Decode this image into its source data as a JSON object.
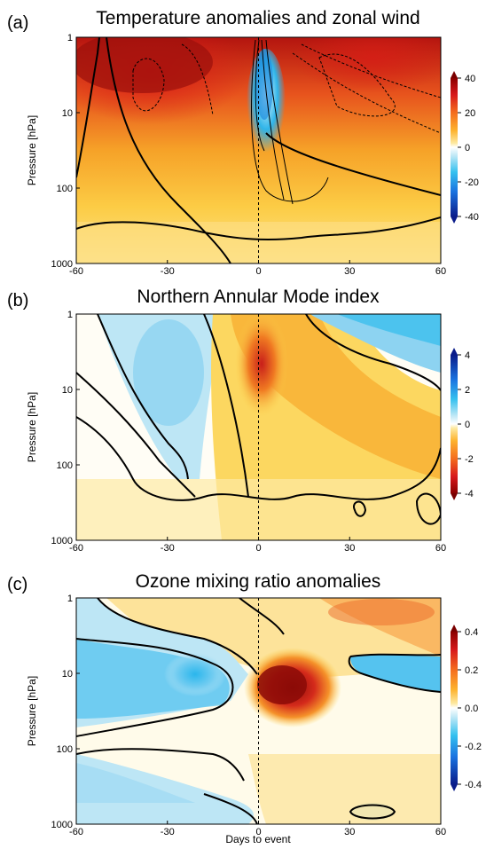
{
  "chart_data": [
    {
      "type": "heatmap",
      "panel": "(a)",
      "title": "Temperature anomalies and zonal wind",
      "ylabel": "Pressure [hPa]",
      "xlabel": "",
      "x_ticks": [
        "-60",
        "-30",
        "0",
        "30",
        "60"
      ],
      "y_ticks": [
        "1",
        "10",
        "100",
        "1000"
      ],
      "xlim": [
        -60,
        60
      ],
      "ylim": [
        1000,
        1
      ],
      "y_scale": "log",
      "colorbar": {
        "ticks": [
          "40",
          "20",
          "0",
          "-20",
          "-40"
        ],
        "range": [
          -40,
          40
        ]
      },
      "description": [
        "warm anomalies aloft before day 0",
        "cold anomaly near 10 hPa right after day 0",
        "contour lines of zonal wind"
      ]
    },
    {
      "type": "heatmap",
      "panel": "(b)",
      "title": "Northern Annular Mode index",
      "ylabel": "Pressure [hPa]",
      "xlabel": "",
      "x_ticks": [
        "-60",
        "-30",
        "0",
        "30",
        "60"
      ],
      "y_ticks": [
        "1",
        "10",
        "100",
        "1000"
      ],
      "xlim": [
        -60,
        60
      ],
      "ylim": [
        1000,
        1
      ],
      "y_scale": "log",
      "colorbar": {
        "ticks": [
          "4",
          "2",
          "0",
          "-2",
          "-4"
        ],
        "range": [
          -4,
          4
        ]
      },
      "description": [
        "negative index propagating downward after day 0"
      ]
    },
    {
      "type": "heatmap",
      "panel": "(c)",
      "title": "Ozone mixing ratio anomalies",
      "ylabel": "Pressure [hPa]",
      "xlabel": "Days to event",
      "x_ticks": [
        "-60",
        "-30",
        "0",
        "30",
        "60"
      ],
      "y_ticks": [
        "1",
        "10",
        "100",
        "1000"
      ],
      "xlim": [
        -60,
        60
      ],
      "ylim": [
        1000,
        1
      ],
      "y_scale": "log",
      "colorbar": {
        "ticks": [
          "0.4",
          "0.2",
          "0.0",
          "-0.2",
          "-0.4"
        ],
        "range": [
          -0.4,
          0.4
        ]
      },
      "description": [
        "positive ozone anomaly near 10-20 hPa after day 0",
        "negative anomalies before event"
      ]
    }
  ],
  "panels": [
    {
      "letter": "(a)",
      "title": "Temperature anomalies and zonal wind"
    },
    {
      "letter": "(b)",
      "title": "Northern Annular Mode index"
    },
    {
      "letter": "(c)",
      "title": "Ozone mixing ratio anomalies"
    }
  ],
  "ylabel": "Pressure [hPa]",
  "xlabel": "Days to event",
  "x_ticks": [
    "-60",
    "-30",
    "0",
    "30",
    "60"
  ],
  "y_ticks": [
    "1",
    "10",
    "100",
    "1000"
  ],
  "colorbars": [
    [
      "40",
      "20",
      "0",
      "-20",
      "-40"
    ],
    [
      "4",
      "2",
      "0",
      "-2",
      "-4"
    ],
    [
      "0.4",
      "0.2",
      "0.0",
      "-0.2",
      "-0.4"
    ]
  ],
  "colors": {
    "dark_red": "#8b0000",
    "red": "#e4241d",
    "orange": "#f79a1e",
    "yellow": "#fcd84a",
    "light_yellow": "#fdf3c0",
    "white": "#ffffff",
    "light_blue": "#bde6f5",
    "cyan": "#32c2ef",
    "blue": "#1565d8",
    "dark_blue": "#0b1f8f"
  }
}
